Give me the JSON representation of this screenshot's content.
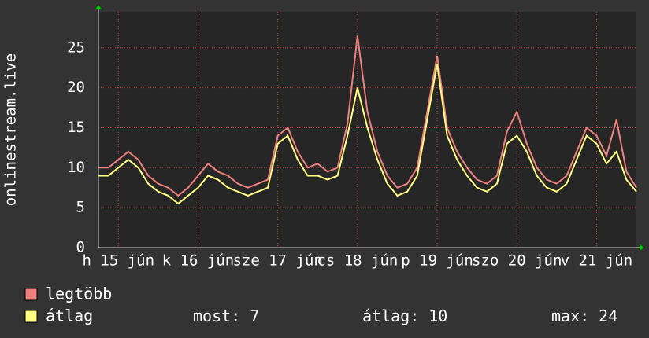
{
  "chart_data": {
    "type": "line",
    "y_label": "onlinestream.live",
    "x": [
      0,
      3,
      6,
      9,
      12,
      15,
      18,
      21,
      24,
      27,
      30,
      33,
      36,
      39,
      42,
      45,
      48,
      51,
      54,
      57,
      60,
      63,
      66,
      69,
      72,
      75,
      78,
      81,
      84,
      87,
      90,
      93,
      96,
      99,
      102,
      105,
      108,
      111,
      114,
      117,
      120,
      123,
      126,
      129,
      132,
      135,
      138,
      141,
      144,
      147,
      150,
      153,
      156,
      159,
      162
    ],
    "xlim": [
      0,
      162
    ],
    "xticks": [
      {
        "value": 6,
        "label": "h 15 jún"
      },
      {
        "value": 30,
        "label": "k 16 jún"
      },
      {
        "value": 54,
        "label": "sze 17 jún"
      },
      {
        "value": 78,
        "label": "cs 18 jún"
      },
      {
        "value": 102,
        "label": "p 19 jún"
      },
      {
        "value": 126,
        "label": "szo 20 jún"
      },
      {
        "value": 150,
        "label": "v 21 jún"
      }
    ],
    "ylim": [
      0,
      29.5
    ],
    "yticks": [
      0,
      5,
      10,
      15,
      20,
      25
    ],
    "grid": true,
    "series": [
      {
        "name": "legtöbb",
        "color": "#f08080",
        "values": [
          10,
          10,
          11,
          12,
          11,
          9,
          8,
          7.5,
          6.5,
          7.5,
          9,
          10.5,
          9.5,
          9,
          8,
          7.5,
          8,
          8.5,
          14,
          15,
          12,
          10,
          10.5,
          9.5,
          10,
          15.5,
          26.5,
          17,
          12,
          9,
          7.5,
          8,
          10,
          17,
          24,
          15,
          12,
          10,
          8.5,
          8,
          9,
          14.5,
          17,
          13,
          10,
          8.5,
          8,
          9,
          12,
          15,
          14,
          11.5,
          16,
          9.5,
          7.5
        ]
      },
      {
        "name": "átlag",
        "color": "#ffff80",
        "values": [
          9,
          9,
          10,
          11,
          10,
          8,
          7,
          6.5,
          5.5,
          6.5,
          7.5,
          9,
          8.5,
          7.5,
          7,
          6.5,
          7,
          7.5,
          13,
          14,
          11,
          9,
          9,
          8.5,
          9,
          14,
          20,
          15,
          11,
          8,
          6.5,
          7,
          9,
          16,
          23,
          14,
          11,
          9,
          7.5,
          7,
          8,
          13,
          14,
          12,
          9,
          7.5,
          7,
          8,
          11,
          14,
          13,
          10.5,
          12,
          8.5,
          7
        ]
      }
    ],
    "stats": [
      {
        "label": "most:",
        "value": 7
      },
      {
        "label": "átlag:",
        "value": 10
      },
      {
        "label": "max:",
        "value": 24
      }
    ]
  }
}
